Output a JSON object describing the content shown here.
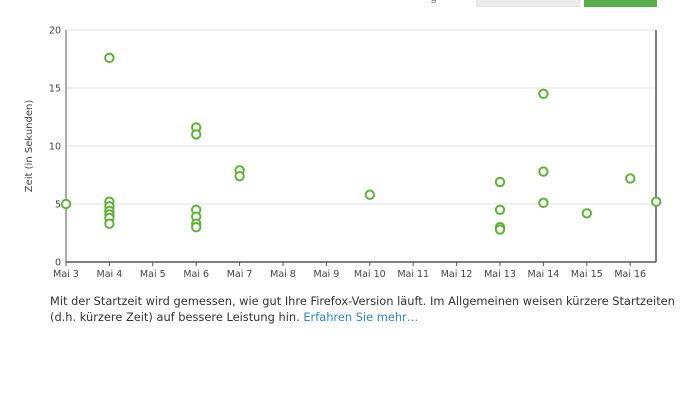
{
  "header": {
    "partial_text": "g"
  },
  "chart_data": {
    "type": "scatter",
    "ylabel": "Zeit (in Sekunden)",
    "xlabel": "",
    "ylim": [
      0,
      20
    ],
    "yticks": [
      0,
      5,
      10,
      15,
      20
    ],
    "grid": "horizontal",
    "x_categories": [
      "Mai 3",
      "Mai 4",
      "Mai 5",
      "Mai 6",
      "Mai 7",
      "Mai 8",
      "Mai 9",
      "Mai 10",
      "Mai 11",
      "Mai 12",
      "Mai 13",
      "Mai 14",
      "Mai 15",
      "Mai 16"
    ],
    "point_color": "#5cb532",
    "points": [
      {
        "x": 0,
        "y": 5.0
      },
      {
        "x": 1,
        "y": 17.6
      },
      {
        "x": 1,
        "y": 5.2
      },
      {
        "x": 1,
        "y": 4.8
      },
      {
        "x": 1,
        "y": 4.4
      },
      {
        "x": 1,
        "y": 4.1
      },
      {
        "x": 1,
        "y": 3.8
      },
      {
        "x": 1,
        "y": 3.3
      },
      {
        "x": 3,
        "y": 11.6
      },
      {
        "x": 3,
        "y": 11.0
      },
      {
        "x": 3,
        "y": 4.5
      },
      {
        "x": 3,
        "y": 3.9
      },
      {
        "x": 3,
        "y": 3.3
      },
      {
        "x": 3,
        "y": 3.0
      },
      {
        "x": 4,
        "y": 7.9
      },
      {
        "x": 4,
        "y": 7.4
      },
      {
        "x": 7,
        "y": 5.8
      },
      {
        "x": 10,
        "y": 6.9
      },
      {
        "x": 10,
        "y": 4.5
      },
      {
        "x": 10,
        "y": 3.0
      },
      {
        "x": 10,
        "y": 2.8
      },
      {
        "x": 11,
        "y": 14.5
      },
      {
        "x": 11,
        "y": 7.8
      },
      {
        "x": 11,
        "y": 5.1
      },
      {
        "x": 12,
        "y": 4.2
      },
      {
        "x": 13,
        "y": 7.2
      },
      {
        "x": 13.6,
        "y": 5.2
      }
    ]
  },
  "description": {
    "text": "Mit der Startzeit wird gemessen, wie gut Ihre Firefox-Version läuft. Im Allgemeinen weisen kürzere Startzeiten (d.h. kürzere Zeit) auf bessere Leistung hin.",
    "link_label": "Erfahren Sie mehr…"
  },
  "colors": {
    "accent": "#57b04c",
    "link": "#2a8ac4",
    "axis": "#333333",
    "grid": "#e3e3e3"
  }
}
